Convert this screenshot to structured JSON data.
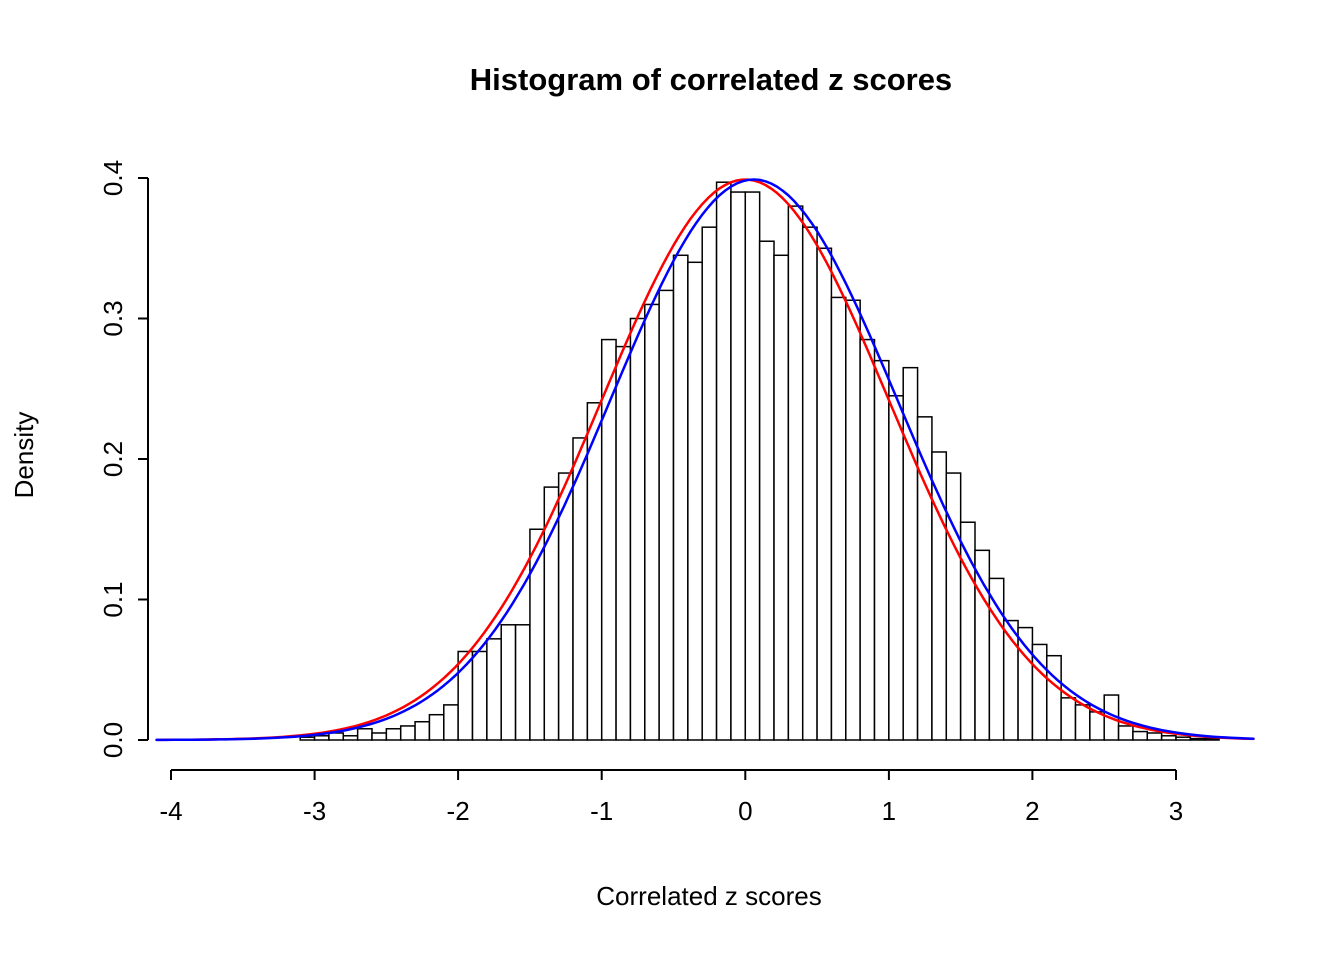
{
  "chart_data": {
    "type": "histogram",
    "title": "Histogram of correlated z scores",
    "xlabel": "Correlated z scores",
    "ylabel": "Density",
    "xlim": [
      -4,
      3.5
    ],
    "ylim": [
      0,
      0.4
    ],
    "x_ticks": [
      -4,
      -3,
      -2,
      -1,
      0,
      1,
      2,
      3
    ],
    "x_tick_labels": [
      "-4",
      "-3",
      "-2",
      "-1",
      "0",
      "1",
      "2",
      "3"
    ],
    "y_ticks": [
      0.0,
      0.1,
      0.2,
      0.3,
      0.4
    ],
    "y_tick_labels": [
      "0.0",
      "0.1",
      "0.2",
      "0.3",
      "0.4"
    ],
    "grid": false,
    "legend": "none",
    "bars": {
      "bin_start": -3.1,
      "bin_width": 0.1,
      "fill": "#FFFFFF",
      "stroke": "#000000",
      "densities": [
        0.002,
        0.003,
        0.005,
        0.003,
        0.008,
        0.005,
        0.008,
        0.01,
        0.013,
        0.018,
        0.025,
        0.063,
        0.063,
        0.072,
        0.082,
        0.082,
        0.15,
        0.18,
        0.19,
        0.215,
        0.24,
        0.285,
        0.28,
        0.3,
        0.31,
        0.32,
        0.345,
        0.34,
        0.365,
        0.397,
        0.39,
        0.39,
        0.355,
        0.345,
        0.38,
        0.365,
        0.35,
        0.315,
        0.313,
        0.285,
        0.27,
        0.245,
        0.265,
        0.23,
        0.205,
        0.19,
        0.155,
        0.135,
        0.115,
        0.085,
        0.08,
        0.068,
        0.06,
        0.03,
        0.025,
        0.02,
        0.032,
        0.01,
        0.006,
        0.005,
        0.003,
        0.002,
        0.001,
        0.001
      ]
    },
    "curves": [
      {
        "name": "red-normal-curve",
        "color": "#FF0000",
        "mean": 0.0,
        "sd": 1.0,
        "x_from": -4.1,
        "x_to": 3.55
      },
      {
        "name": "blue-normal-curve",
        "color": "#0000FF",
        "mean": 0.06,
        "sd": 1.0,
        "x_from": -4.1,
        "x_to": 3.55
      }
    ],
    "colors": {
      "axis": "#000000",
      "bar_fill": "#FFFFFF",
      "bar_stroke": "#000000",
      "curve_red": "#FF0000",
      "curve_blue": "#0000FF"
    }
  }
}
